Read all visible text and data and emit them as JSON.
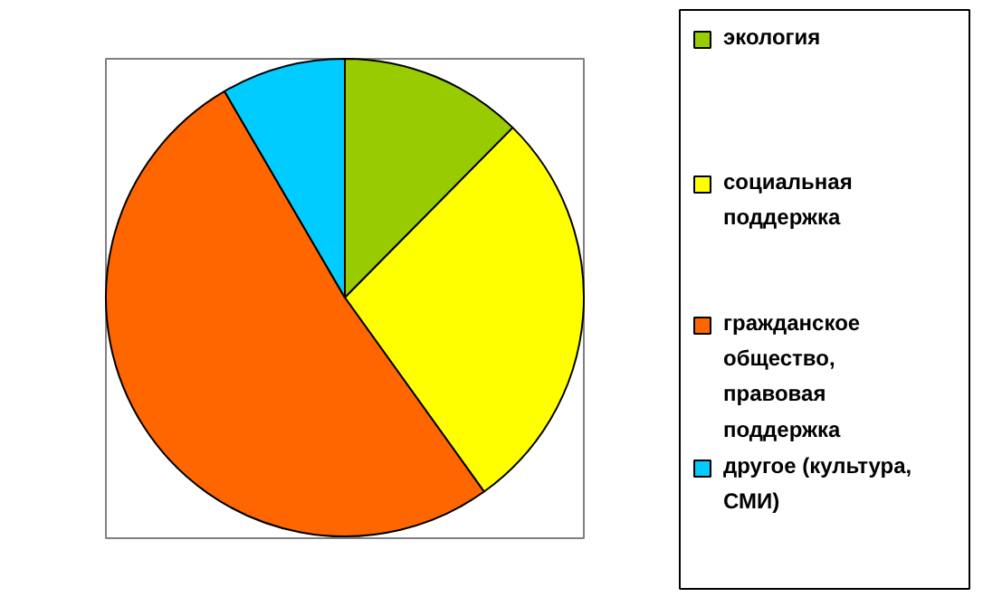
{
  "chart_data": {
    "type": "pie",
    "categories": [
      "экология",
      "социальная поддержка",
      "гражданское общество, правовая поддержка",
      "другое (культура, СМИ)"
    ],
    "values": [
      12.4,
      27.7,
      51.5,
      8.4
    ],
    "colors": [
      "#99cc00",
      "#ffff00",
      "#ff6600",
      "#00ccff"
    ],
    "legend": "right"
  }
}
